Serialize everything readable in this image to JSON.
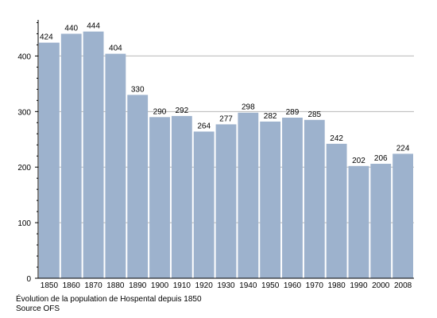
{
  "chart_data": {
    "type": "bar",
    "categories": [
      "1850",
      "1860",
      "1870",
      "1880",
      "1890",
      "1900",
      "1910",
      "1920",
      "1930",
      "1940",
      "1950",
      "1960",
      "1970",
      "1980",
      "1990",
      "2000",
      "2008"
    ],
    "values": [
      424,
      440,
      444,
      404,
      330,
      290,
      292,
      264,
      277,
      298,
      282,
      289,
      285,
      242,
      202,
      206,
      224
    ],
    "y_ticks": [
      0,
      100,
      200,
      300,
      400
    ],
    "ylim": [
      0,
      465
    ],
    "grid": true,
    "legend": "none",
    "xlabel": "",
    "ylabel": "",
    "bar_color": "#9db2cd",
    "grid_color": "#b8b8b8",
    "caption": "Évolution de la population de Hospental depuis 1850",
    "source": "Source OFS"
  }
}
